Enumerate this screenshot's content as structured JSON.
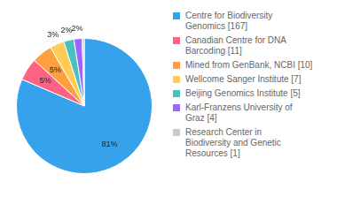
{
  "chart_data": {
    "type": "pie",
    "categories": [
      "Centre for Biodiversity\nGenomics [167]",
      "Canadian Centre for DNA\nBarcoding [11]",
      "Mined from GenBank, NCBI [10]",
      "Wellcome Sanger Institute [7]",
      "Beijing Genomics Institute [5]",
      "Karl-Franzens University of\nGraz [4]",
      "Research Center in\nBiodiversity and Genetic\nResources [1]"
    ],
    "values": [
      81.46,
      5.37,
      4.88,
      3.41,
      2.44,
      1.95,
      0.49
    ],
    "value_labels": [
      "81%",
      "5%",
      "5%",
      "3%",
      "2%",
      "2%",
      null
    ],
    "data_labels": true,
    "legend": "right"
  }
}
